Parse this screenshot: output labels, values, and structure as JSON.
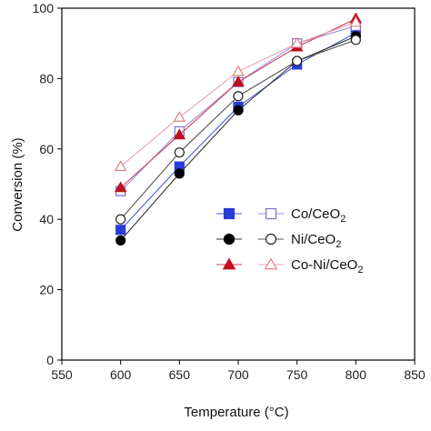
{
  "chart_data": {
    "type": "line",
    "title": "",
    "xlabel": "Temperature (°C)",
    "ylabel": "Conversion (%)",
    "xlim": [
      550,
      850
    ],
    "ylim": [
      0,
      100
    ],
    "xticks": [
      550,
      600,
      650,
      700,
      750,
      800,
      850
    ],
    "yticks": [
      0,
      20,
      40,
      60,
      80,
      100
    ],
    "x": [
      600,
      650,
      700,
      750,
      800
    ],
    "grid": false,
    "legend_position": "center-right",
    "series": [
      {
        "name": "Co/CeO2",
        "legend_base": "Co/CeO",
        "legend_sub": "2",
        "marker": "square",
        "filled": true,
        "color": "#2b3bd9",
        "line_color": "#4a5cd6",
        "values": [
          37,
          55,
          72,
          84,
          93
        ]
      },
      {
        "name": "Co/CeO2",
        "marker": "square",
        "filled": false,
        "color": "#7a70d0",
        "line_color": "#9a90dd",
        "values": [
          48,
          65,
          79,
          90,
          95
        ]
      },
      {
        "name": "Ni/CeO2",
        "legend_base": "Ni/CeO",
        "legend_sub": "2",
        "marker": "circle",
        "filled": true,
        "color": "#000000",
        "line_color": "#333333",
        "values": [
          34,
          53,
          71,
          85,
          92
        ]
      },
      {
        "name": "Ni/CeO2",
        "marker": "circle",
        "filled": false,
        "color": "#222222",
        "line_color": "#555555",
        "values": [
          40,
          59,
          75,
          85,
          91
        ]
      },
      {
        "name": "Co-Ni/CeO2",
        "legend_base": "Co-Ni/CeO",
        "legend_sub": "2",
        "marker": "triangle",
        "filled": true,
        "color": "#c0101c",
        "line_color": "#d04050",
        "values": [
          49,
          64,
          79,
          89,
          97
        ]
      },
      {
        "name": "Co-Ni/CeO2",
        "marker": "triangle",
        "filled": false,
        "color": "#e48080",
        "line_color": "#e8a0b0",
        "values": [
          55,
          69,
          82,
          90,
          96
        ]
      }
    ]
  }
}
